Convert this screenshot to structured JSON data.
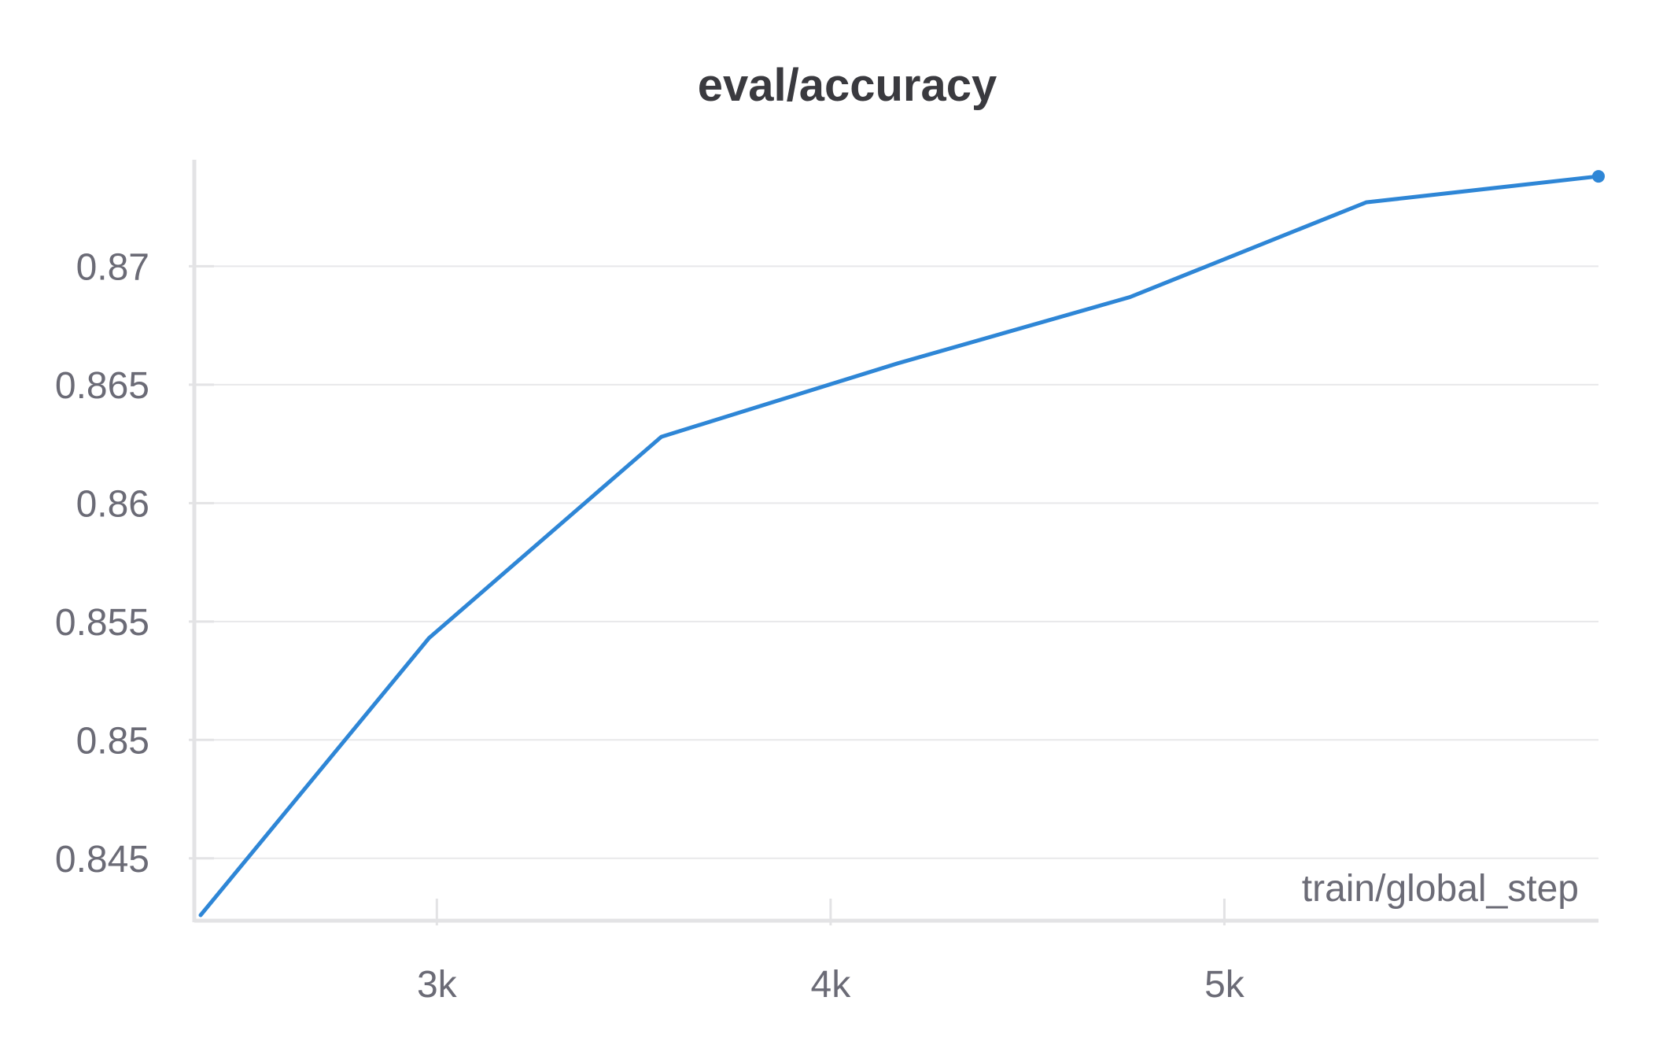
{
  "chart_data": {
    "type": "line",
    "title": "eval/accuracy",
    "xlabel": "train/global_step",
    "ylabel": "",
    "xlim": [
      2390,
      5950
    ],
    "ylim": [
      0.8425,
      0.8745
    ],
    "x_ticks": [
      {
        "value": 3000,
        "label": "3k"
      },
      {
        "value": 4000,
        "label": "4k"
      },
      {
        "value": 5000,
        "label": "5k"
      }
    ],
    "y_ticks": [
      {
        "value": 0.845,
        "label": "0.845"
      },
      {
        "value": 0.85,
        "label": "0.85"
      },
      {
        "value": 0.855,
        "label": "0.855"
      },
      {
        "value": 0.86,
        "label": "0.86"
      },
      {
        "value": 0.865,
        "label": "0.865"
      },
      {
        "value": 0.87,
        "label": "0.87"
      }
    ],
    "grid": true,
    "series": [
      {
        "color": "#2e86d6",
        "x": [
          2400,
          2980,
          3570,
          4170,
          4760,
          5360,
          5950
        ],
        "values": [
          0.8426,
          0.8543,
          0.8628,
          0.8659,
          0.8687,
          0.8727,
          0.8738
        ],
        "end_marker": true
      }
    ]
  }
}
